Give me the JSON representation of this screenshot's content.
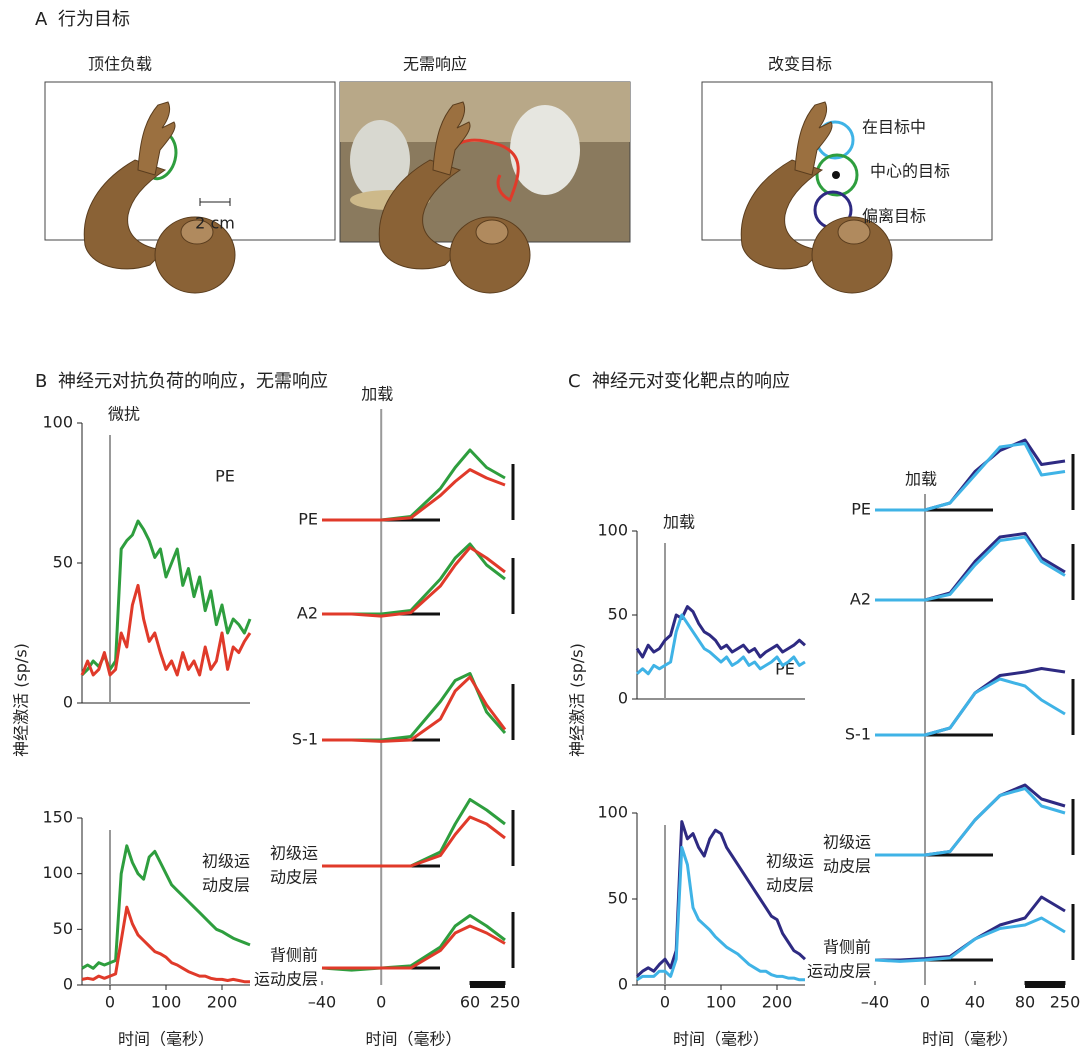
{
  "panel_a": {
    "label": "A",
    "title": "行为目标",
    "conditions": [
      {
        "title": "顶住负载",
        "scale": "2 cm"
      },
      {
        "title": "无需响应"
      },
      {
        "title": "改变目标",
        "targets": [
          "在目标中",
          "中心的目标",
          "偏离目标"
        ]
      }
    ]
  },
  "panel_b": {
    "label": "B",
    "title": "神经元对抗负荷的响应，无需响应"
  },
  "panel_c": {
    "label": "C",
    "title": "神经元对变化靶点的响应"
  },
  "chart_data": [
    {
      "type": "line",
      "ylabel": "神经激活 (sp/s)",
      "annotation": "微扰",
      "event_x": 0,
      "region": [
        "PE"
      ],
      "x": [
        -50,
        -40,
        -30,
        -20,
        -10,
        0,
        10,
        20,
        30,
        40,
        50,
        60,
        70,
        80,
        90,
        100,
        110,
        120,
        130,
        140,
        150,
        160,
        170,
        180,
        190,
        200,
        210,
        220,
        230,
        240,
        250
      ],
      "xlim": [
        -50,
        250
      ],
      "ylim": [
        0,
        100
      ],
      "yticks": [
        0,
        50,
        100
      ],
      "series": [
        {
          "color": "#2e9e3e",
          "values": [
            10,
            12,
            15,
            13,
            17,
            12,
            15,
            55,
            58,
            60,
            65,
            62,
            58,
            52,
            55,
            45,
            50,
            55,
            42,
            48,
            38,
            45,
            33,
            40,
            28,
            35,
            25,
            30,
            28,
            25,
            30
          ]
        },
        {
          "color": "#e03a2a",
          "values": [
            10,
            15,
            10,
            12,
            18,
            10,
            12,
            25,
            20,
            35,
            42,
            30,
            22,
            25,
            18,
            12,
            15,
            10,
            18,
            12,
            15,
            10,
            20,
            12,
            15,
            25,
            12,
            20,
            18,
            22,
            25
          ]
        }
      ]
    },
    {
      "type": "line",
      "xlabel": "时间（毫秒）",
      "event_x": 0,
      "region": [
        "初级运",
        "动皮层"
      ],
      "x": [
        -50,
        -40,
        -30,
        -20,
        -10,
        0,
        10,
        20,
        30,
        40,
        50,
        60,
        70,
        80,
        90,
        100,
        110,
        120,
        130,
        140,
        150,
        160,
        170,
        180,
        190,
        200,
        210,
        220,
        230,
        240,
        250
      ],
      "xlim": [
        -50,
        250
      ],
      "xticks": [
        0,
        100,
        200
      ],
      "ylim": [
        0,
        150
      ],
      "yticks": [
        0,
        50,
        100,
        150
      ],
      "series": [
        {
          "color": "#2e9e3e",
          "values": [
            15,
            18,
            15,
            20,
            18,
            20,
            22,
            100,
            125,
            110,
            100,
            95,
            115,
            120,
            110,
            100,
            90,
            85,
            80,
            75,
            70,
            65,
            60,
            55,
            50,
            48,
            45,
            42,
            40,
            38,
            36
          ]
        },
        {
          "color": "#e03a2a",
          "values": [
            5,
            6,
            5,
            8,
            6,
            8,
            10,
            40,
            70,
            55,
            45,
            40,
            35,
            30,
            28,
            25,
            20,
            18,
            15,
            12,
            10,
            8,
            8,
            6,
            5,
            5,
            4,
            5,
            4,
            3,
            3
          ]
        }
      ]
    },
    {
      "type": "traces",
      "xlabel": "时间（毫秒）",
      "annotation": "加载",
      "event_x": 0,
      "x": [
        -40,
        -20,
        0,
        20,
        40,
        50,
        60,
        150,
        250
      ],
      "xlim": [
        -40,
        250
      ],
      "xticks": [
        {
          "value": -40,
          "label": "–40"
        },
        0,
        60,
        250
      ],
      "rows": [
        {
          "label": [
            "PE"
          ],
          "series": [
            {
              "color": "#2e9e3e",
              "values": [
                0,
                0,
                0,
                0.05,
                0.45,
                0.75,
                1,
                0.75,
                0.6
              ]
            },
            {
              "color": "#e03a2a",
              "values": [
                0,
                0,
                0,
                0.03,
                0.35,
                0.55,
                0.72,
                0.6,
                0.5
              ]
            }
          ]
        },
        {
          "label": [
            "A2"
          ],
          "series": [
            {
              "color": "#2e9e3e",
              "values": [
                0,
                0,
                0,
                0.05,
                0.5,
                0.8,
                1,
                0.7,
                0.5
              ]
            },
            {
              "color": "#e03a2a",
              "values": [
                0,
                0,
                -0.03,
                0.02,
                0.4,
                0.7,
                0.95,
                0.8,
                0.6
              ]
            }
          ]
        },
        {
          "label": [
            "S-1"
          ],
          "series": [
            {
              "color": "#2e9e3e",
              "values": [
                0,
                0,
                0,
                0.05,
                0.55,
                0.85,
                0.95,
                0.4,
                0.1
              ]
            },
            {
              "color": "#e03a2a",
              "values": [
                0,
                0,
                -0.02,
                0,
                0.3,
                0.7,
                0.9,
                0.5,
                0.15
              ]
            }
          ]
        },
        {
          "label": [
            "初级运",
            "动皮层"
          ],
          "series": [
            {
              "color": "#2e9e3e",
              "values": [
                0,
                0,
                0,
                0,
                0.2,
                0.6,
                0.95,
                0.8,
                0.6
              ]
            },
            {
              "color": "#e03a2a",
              "values": [
                0,
                0,
                0,
                0,
                0.15,
                0.45,
                0.7,
                0.6,
                0.4
              ]
            }
          ]
        },
        {
          "label": [
            "背侧前",
            "运动皮层"
          ],
          "series": [
            {
              "color": "#2e9e3e",
              "values": [
                0,
                -0.03,
                0,
                0.03,
                0.3,
                0.6,
                0.75,
                0.6,
                0.4
              ]
            },
            {
              "color": "#e03a2a",
              "values": [
                0,
                0,
                0,
                0,
                0.25,
                0.5,
                0.6,
                0.5,
                0.35
              ]
            }
          ]
        }
      ]
    },
    {
      "type": "line",
      "ylabel": "神经激活 (sp/s)",
      "annotation": "加载",
      "event_x": 0,
      "region": [
        "PE"
      ],
      "x": [
        -50,
        -40,
        -30,
        -20,
        -10,
        0,
        10,
        20,
        30,
        40,
        50,
        60,
        70,
        80,
        90,
        100,
        110,
        120,
        130,
        140,
        150,
        160,
        170,
        180,
        190,
        200,
        210,
        220,
        230,
        240,
        250
      ],
      "xlim": [
        -50,
        250
      ],
      "ylim": [
        0,
        100
      ],
      "yticks": [
        0,
        50,
        100
      ],
      "series": [
        {
          "color": "#2e2a82",
          "values": [
            30,
            25,
            32,
            28,
            30,
            35,
            38,
            50,
            48,
            55,
            52,
            45,
            40,
            38,
            35,
            30,
            32,
            28,
            30,
            32,
            28,
            30,
            25,
            28,
            30,
            32,
            28,
            30,
            32,
            35,
            32
          ]
        },
        {
          "color": "#3fb3e6",
          "values": [
            15,
            18,
            15,
            20,
            18,
            20,
            22,
            40,
            50,
            45,
            40,
            35,
            30,
            28,
            25,
            22,
            25,
            20,
            22,
            25,
            20,
            22,
            18,
            20,
            22,
            25,
            20,
            22,
            25,
            20,
            22
          ]
        }
      ]
    },
    {
      "type": "line",
      "xlabel": "时间（毫秒）",
      "event_x": 0,
      "region": [
        "初级运",
        "动皮层"
      ],
      "x": [
        -50,
        -40,
        -30,
        -20,
        -10,
        0,
        10,
        20,
        30,
        40,
        50,
        60,
        70,
        80,
        90,
        100,
        110,
        120,
        130,
        140,
        150,
        160,
        170,
        180,
        190,
        200,
        210,
        220,
        230,
        240,
        250
      ],
      "xlim": [
        -50,
        250
      ],
      "xticks": [
        0,
        100,
        200
      ],
      "ylim": [
        0,
        100
      ],
      "yticks": [
        0,
        50,
        100
      ],
      "series": [
        {
          "color": "#2e2a82",
          "values": [
            5,
            8,
            10,
            8,
            12,
            15,
            10,
            20,
            95,
            85,
            88,
            80,
            75,
            85,
            90,
            88,
            80,
            75,
            70,
            65,
            60,
            55,
            50,
            45,
            40,
            38,
            30,
            25,
            20,
            18,
            15
          ]
        },
        {
          "color": "#3fb3e6",
          "values": [
            3,
            5,
            5,
            5,
            8,
            8,
            5,
            15,
            80,
            70,
            45,
            38,
            35,
            32,
            28,
            25,
            22,
            20,
            18,
            15,
            12,
            10,
            8,
            8,
            6,
            5,
            5,
            4,
            4,
            3,
            3
          ]
        }
      ]
    },
    {
      "type": "traces",
      "xlabel": "时间（毫秒）",
      "annotation": "加载",
      "event_x": 0,
      "x": [
        -40,
        -20,
        0,
        20,
        40,
        60,
        80,
        150,
        250
      ],
      "xlim": [
        -40,
        250
      ],
      "xticks": [
        {
          "value": -40,
          "label": "–40"
        },
        0,
        40,
        80,
        250
      ],
      "rows": [
        {
          "label": [
            "PE"
          ],
          "series": [
            {
              "color": "#2e2a82",
              "values": [
                0,
                0,
                0,
                0.1,
                0.55,
                0.85,
                1,
                0.65,
                0.7
              ]
            },
            {
              "color": "#3fb3e6",
              "values": [
                0,
                0,
                0,
                0.1,
                0.5,
                0.9,
                0.95,
                0.5,
                0.55
              ]
            }
          ]
        },
        {
          "label": [
            "A2"
          ],
          "series": [
            {
              "color": "#2e2a82",
              "values": [
                0,
                0,
                0,
                0.1,
                0.55,
                0.9,
                0.95,
                0.6,
                0.4
              ]
            },
            {
              "color": "#3fb3e6",
              "values": [
                0,
                0,
                0,
                0.08,
                0.5,
                0.85,
                0.9,
                0.55,
                0.35
              ]
            }
          ]
        },
        {
          "label": [
            "S-1"
          ],
          "series": [
            {
              "color": "#2e2a82",
              "values": [
                0,
                0,
                0,
                0.1,
                0.6,
                0.85,
                0.9,
                0.95,
                0.9
              ]
            },
            {
              "color": "#3fb3e6",
              "values": [
                0,
                0,
                0,
                0.1,
                0.6,
                0.8,
                0.7,
                0.5,
                0.3
              ]
            }
          ]
        },
        {
          "label": [
            "初级运",
            "动皮层"
          ],
          "series": [
            {
              "color": "#2e2a82",
              "values": [
                0,
                0,
                0,
                0.05,
                0.5,
                0.85,
                1,
                0.8,
                0.7
              ]
            },
            {
              "color": "#3fb3e6",
              "values": [
                0,
                0,
                0,
                0.05,
                0.5,
                0.85,
                0.95,
                0.7,
                0.6
              ]
            }
          ]
        },
        {
          "label": [
            "背侧前",
            "运动皮层"
          ],
          "series": [
            {
              "color": "#2e2a82",
              "values": [
                0,
                0,
                0.02,
                0.05,
                0.3,
                0.5,
                0.6,
                0.9,
                0.7
              ]
            },
            {
              "color": "#3fb3e6",
              "values": [
                0,
                -0.02,
                0,
                0.03,
                0.3,
                0.45,
                0.5,
                0.6,
                0.4
              ]
            }
          ]
        }
      ]
    }
  ]
}
